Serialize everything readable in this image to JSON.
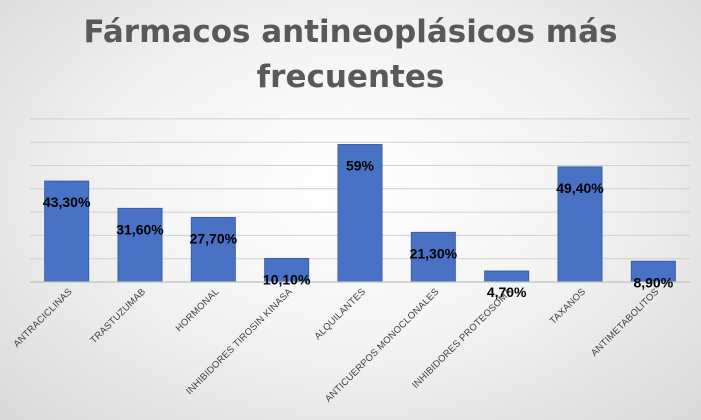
{
  "chart_data": {
    "type": "bar",
    "title_lines": [
      "Fármacos antineoplásicos más",
      "frecuentes"
    ],
    "categories": [
      "ANTRACICLINAS",
      "TRASTUZUMAB",
      "HORMONAL",
      "INHIBIDORES TIROSIN KINASA",
      "ALQUILANTES",
      "ANTICUERPOS MONOCLONALES",
      "INHIBIDORES PROTEOSOMA",
      "TAXANOS",
      "ANTIMETABOLITOS"
    ],
    "values": [
      43.3,
      31.6,
      27.7,
      10.1,
      59,
      21.3,
      4.7,
      49.4,
      8.9
    ],
    "data_labels": [
      "43,30%",
      "31,60%",
      "27,70%",
      "10,10%",
      "59%",
      "21,30%",
      "4,70%",
      "49,40%",
      "8,90%"
    ],
    "unit": "%",
    "ylim": [
      0,
      70
    ],
    "gridlines": true,
    "y_axis_labels_visible": false,
    "bar_color": "#4a72c4",
    "bar_edge_color": "#3a5fa8",
    "gridline_color": "#d0d0d0"
  }
}
